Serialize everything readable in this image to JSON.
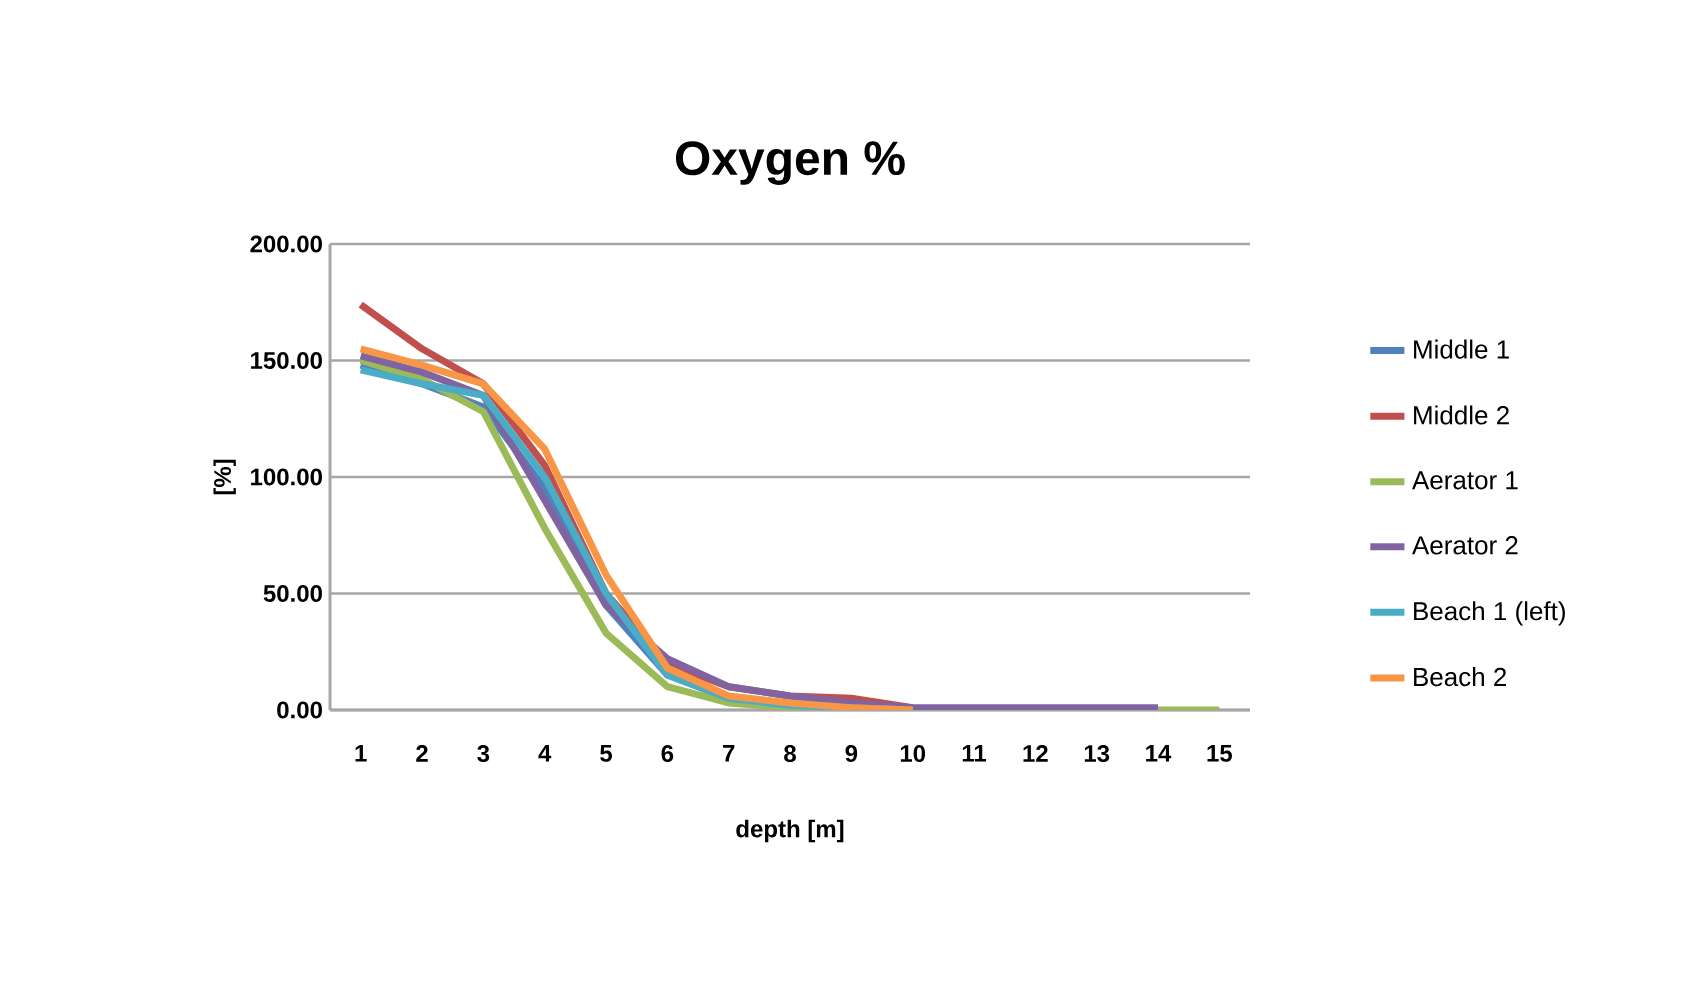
{
  "chart_data": {
    "type": "line",
    "title": "Oxygen %",
    "xlabel": "depth [m]",
    "ylabel": "[%]",
    "categories": [
      "1",
      "2",
      "3",
      "4",
      "5",
      "6",
      "7",
      "8",
      "9",
      "10",
      "11",
      "12",
      "13",
      "14",
      "15"
    ],
    "series": [
      {
        "name": "Middle 1",
        "color": "#4f81bd",
        "values": [
          148,
          140,
          130,
          95,
          45,
          15,
          5,
          2,
          1,
          0,
          null,
          null,
          null,
          null,
          null
        ]
      },
      {
        "name": "Middle 2",
        "color": "#c0504d",
        "values": [
          174,
          155,
          140,
          105,
          50,
          20,
          10,
          6,
          5,
          1,
          null,
          null,
          null,
          null,
          null
        ]
      },
      {
        "name": "Aerator 1",
        "color": "#9bbb59",
        "values": [
          150,
          142,
          128,
          78,
          33,
          10,
          3,
          1,
          0,
          0,
          0,
          0,
          0,
          0,
          0
        ]
      },
      {
        "name": "Aerator 2",
        "color": "#8064a2",
        "values": [
          152,
          145,
          135,
          90,
          45,
          22,
          10,
          6,
          3,
          1,
          1,
          1,
          1,
          1,
          null
        ]
      },
      {
        "name": "Beach 1 (left)",
        "color": "#4bacc6",
        "values": [
          146,
          140,
          135,
          100,
          50,
          15,
          5,
          2,
          1,
          0,
          null,
          null,
          null,
          null,
          null
        ]
      },
      {
        "name": "Beach 2",
        "color": "#f79646",
        "values": [
          155,
          148,
          140,
          112,
          58,
          18,
          6,
          3,
          1,
          0,
          null,
          null,
          null,
          null,
          null
        ]
      }
    ],
    "ylim": [
      0,
      200
    ],
    "yticks": [
      {
        "value": 0,
        "label": "0.00"
      },
      {
        "value": 50,
        "label": "50.00"
      },
      {
        "value": 100,
        "label": "100.00"
      },
      {
        "value": 150,
        "label": "150.00"
      },
      {
        "value": 200,
        "label": "200.00"
      }
    ],
    "grid": "y",
    "legend": "right",
    "marker": "none",
    "line_style": "solid"
  }
}
